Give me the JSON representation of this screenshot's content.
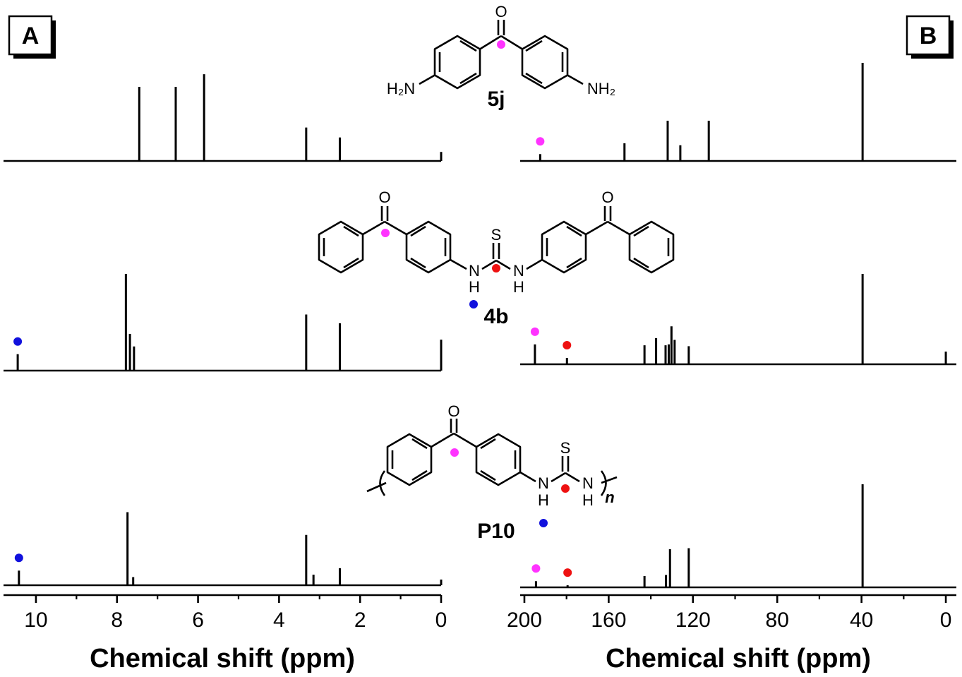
{
  "panels": {
    "A": "A",
    "B": "B"
  },
  "compounds": [
    "5j",
    "4b",
    "P10"
  ],
  "structure_labels": {
    "O": "O",
    "S": "S",
    "H2N": "H₂N",
    "NH2": "NH₂",
    "NH": "NH",
    "N": "N",
    "H": "H",
    "n": "n"
  },
  "colors": {
    "carbonyl_marker": "#ff33ff",
    "thiourea_C_marker": "#ee1111",
    "NH_marker": "#1111dd",
    "line": "#000000"
  },
  "chart_data": [
    {
      "type": "line",
      "panel": "A",
      "xlabel": "Chemical shift (ppm)",
      "ylabel": "",
      "xlim": [
        10.8,
        0
      ],
      "xticks": [
        10,
        8,
        6,
        4,
        2,
        0
      ],
      "grid": false,
      "series": [
        {
          "name": "5j",
          "peaks": [
            {
              "ppm": 7.45,
              "height": 0.82
            },
            {
              "ppm": 6.55,
              "height": 0.82
            },
            {
              "ppm": 5.85,
              "height": 0.96
            },
            {
              "ppm": 3.33,
              "height": 0.37
            },
            {
              "ppm": 2.5,
              "height": 0.26
            },
            {
              "ppm": 0.0,
              "height": 0.1
            }
          ],
          "markers": []
        },
        {
          "name": "4b",
          "peaks": [
            {
              "ppm": 10.45,
              "height": 0.17
            },
            {
              "ppm": 7.78,
              "height": 1.0
            },
            {
              "ppm": 7.68,
              "height": 0.38
            },
            {
              "ppm": 7.58,
              "height": 0.25
            },
            {
              "ppm": 3.33,
              "height": 0.58
            },
            {
              "ppm": 2.5,
              "height": 0.49
            },
            {
              "ppm": 0.0,
              "height": 0.32
            }
          ],
          "markers": [
            {
              "ppm": 10.45,
              "color": "NH_marker"
            }
          ]
        },
        {
          "name": "P10",
          "peaks": [
            {
              "ppm": 10.42,
              "height": 0.18
            },
            {
              "ppm": 7.74,
              "height": 0.9
            },
            {
              "ppm": 7.6,
              "height": 0.1
            },
            {
              "ppm": 3.33,
              "height": 0.62
            },
            {
              "ppm": 3.15,
              "height": 0.13
            },
            {
              "ppm": 2.5,
              "height": 0.21
            },
            {
              "ppm": 0.0,
              "height": 0.07
            }
          ],
          "markers": [
            {
              "ppm": 10.42,
              "color": "NH_marker"
            }
          ]
        }
      ]
    },
    {
      "type": "line",
      "panel": "B",
      "xlabel": "Chemical shift (ppm)",
      "ylabel": "",
      "xlim": [
        202,
        -5
      ],
      "xticks": [
        200,
        160,
        120,
        80,
        40,
        0
      ],
      "grid": false,
      "series": [
        {
          "name": "5j",
          "peaks": [
            {
              "ppm": 192.5,
              "height": 0.07
            },
            {
              "ppm": 152.5,
              "height": 0.18
            },
            {
              "ppm": 132.0,
              "height": 0.41
            },
            {
              "ppm": 126.0,
              "height": 0.16
            },
            {
              "ppm": 112.5,
              "height": 0.41
            },
            {
              "ppm": 39.5,
              "height": 1.0
            }
          ],
          "markers": [
            {
              "ppm": 192.5,
              "color": "carbonyl_marker"
            }
          ]
        },
        {
          "name": "4b",
          "peaks": [
            {
              "ppm": 195.0,
              "height": 0.22
            },
            {
              "ppm": 179.8,
              "height": 0.07
            },
            {
              "ppm": 143.0,
              "height": 0.21
            },
            {
              "ppm": 137.5,
              "height": 0.29
            },
            {
              "ppm": 133.0,
              "height": 0.21
            },
            {
              "ppm": 131.5,
              "height": 0.22
            },
            {
              "ppm": 130.2,
              "height": 0.42
            },
            {
              "ppm": 128.7,
              "height": 0.27
            },
            {
              "ppm": 122.0,
              "height": 0.2
            },
            {
              "ppm": 39.5,
              "height": 1.0
            },
            {
              "ppm": 0.0,
              "height": 0.14
            }
          ],
          "markers": [
            {
              "ppm": 195.0,
              "color": "carbonyl_marker"
            },
            {
              "ppm": 179.8,
              "color": "thiourea_C_marker"
            }
          ]
        },
        {
          "name": "P10",
          "peaks": [
            {
              "ppm": 194.5,
              "height": 0.06
            },
            {
              "ppm": 179.5,
              "height": 0.02
            },
            {
              "ppm": 143.0,
              "height": 0.11
            },
            {
              "ppm": 132.8,
              "height": 0.12
            },
            {
              "ppm": 130.9,
              "height": 0.37
            },
            {
              "ppm": 122.0,
              "height": 0.38
            },
            {
              "ppm": 39.5,
              "height": 1.0
            }
          ],
          "markers": [
            {
              "ppm": 194.5,
              "color": "carbonyl_marker"
            },
            {
              "ppm": 179.5,
              "color": "thiourea_C_marker"
            }
          ]
        }
      ]
    }
  ]
}
